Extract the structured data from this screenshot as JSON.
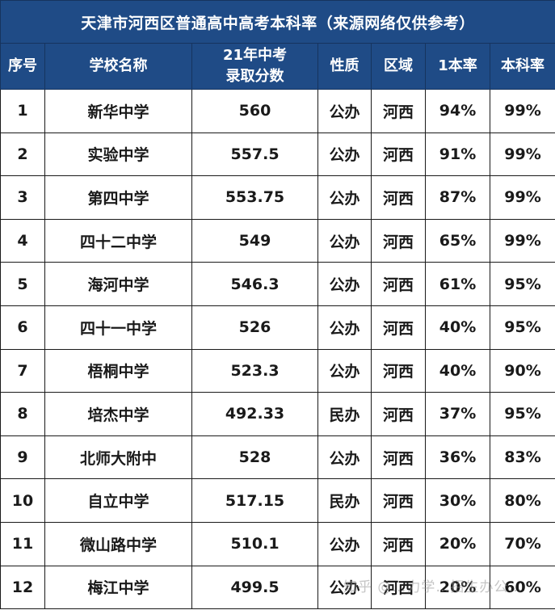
{
  "title": "天津市河西区普通高中高考本科率（来源网络仅供参考）",
  "columns": [
    "序号",
    "学校名称",
    "21年中考\n录取分数",
    "性质",
    "区域",
    "1本率",
    "本科率"
  ],
  "column_lines": {
    "score_line1": "21年中考",
    "score_line2": "录取分数"
  },
  "colors": {
    "header_bg": "#1f4b86",
    "header_text": "#ffffff",
    "border": "#1a1a1a"
  },
  "rows": [
    {
      "no": "1",
      "name": "新华中学",
      "score": "560",
      "type": "公办",
      "district": "河西",
      "tier1": "94%",
      "bachelor": "99%"
    },
    {
      "no": "2",
      "name": "实验中学",
      "score": "557.5",
      "type": "公办",
      "district": "河西",
      "tier1": "91%",
      "bachelor": "99%"
    },
    {
      "no": "3",
      "name": "第四中学",
      "score": "553.75",
      "type": "公办",
      "district": "河西",
      "tier1": "87%",
      "bachelor": "99%"
    },
    {
      "no": "4",
      "name": "四十二中学",
      "score": "549",
      "type": "公办",
      "district": "河西",
      "tier1": "65%",
      "bachelor": "99%"
    },
    {
      "no": "5",
      "name": "海河中学",
      "score": "546.3",
      "type": "公办",
      "district": "河西",
      "tier1": "61%",
      "bachelor": "95%"
    },
    {
      "no": "6",
      "name": "四十一中学",
      "score": "526",
      "type": "公办",
      "district": "河西",
      "tier1": "40%",
      "bachelor": "95%"
    },
    {
      "no": "7",
      "name": "梧桐中学",
      "score": "523.3",
      "type": "公办",
      "district": "河西",
      "tier1": "40%",
      "bachelor": "90%"
    },
    {
      "no": "8",
      "name": "培杰中学",
      "score": "492.33",
      "type": "民办",
      "district": "河西",
      "tier1": "37%",
      "bachelor": "95%"
    },
    {
      "no": "9",
      "name": "北师大附中",
      "score": "528",
      "type": "公办",
      "district": "河西",
      "tier1": "36%",
      "bachelor": "83%"
    },
    {
      "no": "10",
      "name": "自立中学",
      "score": "517.15",
      "type": "民办",
      "district": "河西",
      "tier1": "30%",
      "bachelor": "80%"
    },
    {
      "no": "11",
      "name": "微山路中学",
      "score": "510.1",
      "type": "公办",
      "district": "河西",
      "tier1": "20%",
      "bachelor": "70%"
    },
    {
      "no": "12",
      "name": "梅江中学",
      "score": "499.5",
      "type": "公办",
      "district": "河西",
      "tier1": "20%",
      "bachelor": "60%"
    }
  ],
  "watermark": "知乎 @…力学…招生办公…"
}
